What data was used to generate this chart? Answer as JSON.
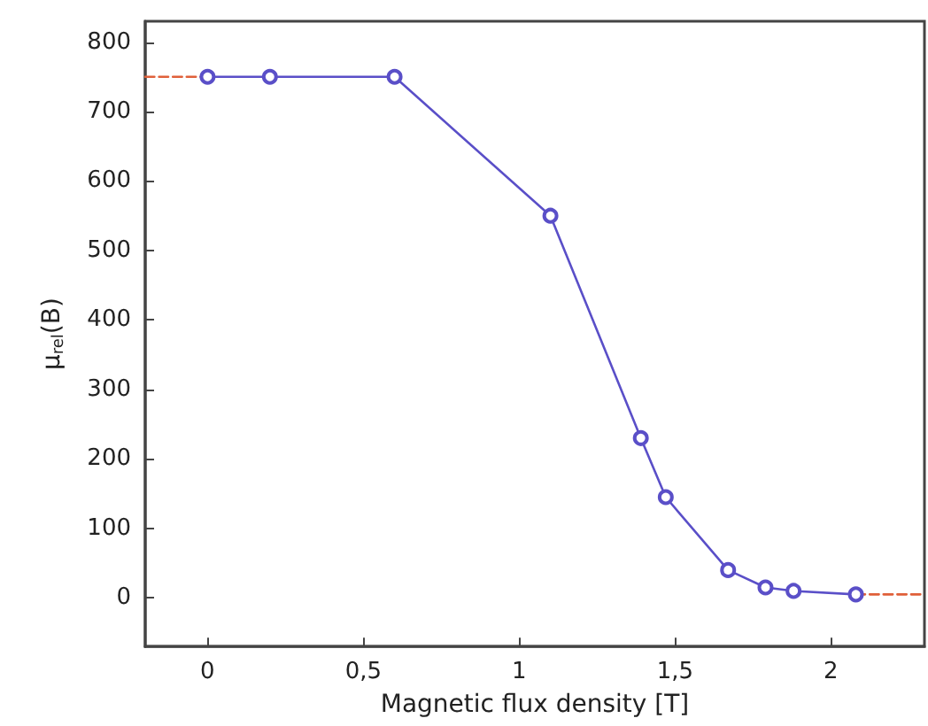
{
  "chart_data": {
    "type": "line",
    "xlabel": "Magnetic flux density [T]",
    "ylabel": "μ$_{rel}$(B)",
    "xlim": [
      -0.2,
      2.3
    ],
    "ylim": [
      -70,
      830
    ],
    "xticks": [
      0,
      {
        "value": 0.5,
        "label": "0,5"
      },
      1,
      {
        "value": 1.5,
        "label": "1,5"
      },
      2
    ],
    "yticks": [
      0,
      100,
      200,
      300,
      400,
      500,
      600,
      700,
      800
    ],
    "grid": false,
    "series": [
      {
        "color": "#5a4fc8",
        "marker": "circle",
        "line_style": "solid",
        "x": [
          0,
          0.2,
          0.6,
          1.1,
          1.39,
          1.47,
          1.67,
          1.79,
          1.88,
          2.08
        ],
        "values": [
          750,
          750,
          750,
          550,
          230,
          145,
          40,
          15,
          10,
          5
        ]
      },
      {
        "color": "#e0603a",
        "marker": "none",
        "line_style": "dashed",
        "x": [
          -0.2,
          0
        ],
        "values": [
          750,
          750
        ]
      },
      {
        "color": "#e0603a",
        "marker": "none",
        "line_style": "dashed",
        "x": [
          2.08,
          2.3
        ],
        "values": [
          5,
          5
        ]
      }
    ]
  }
}
